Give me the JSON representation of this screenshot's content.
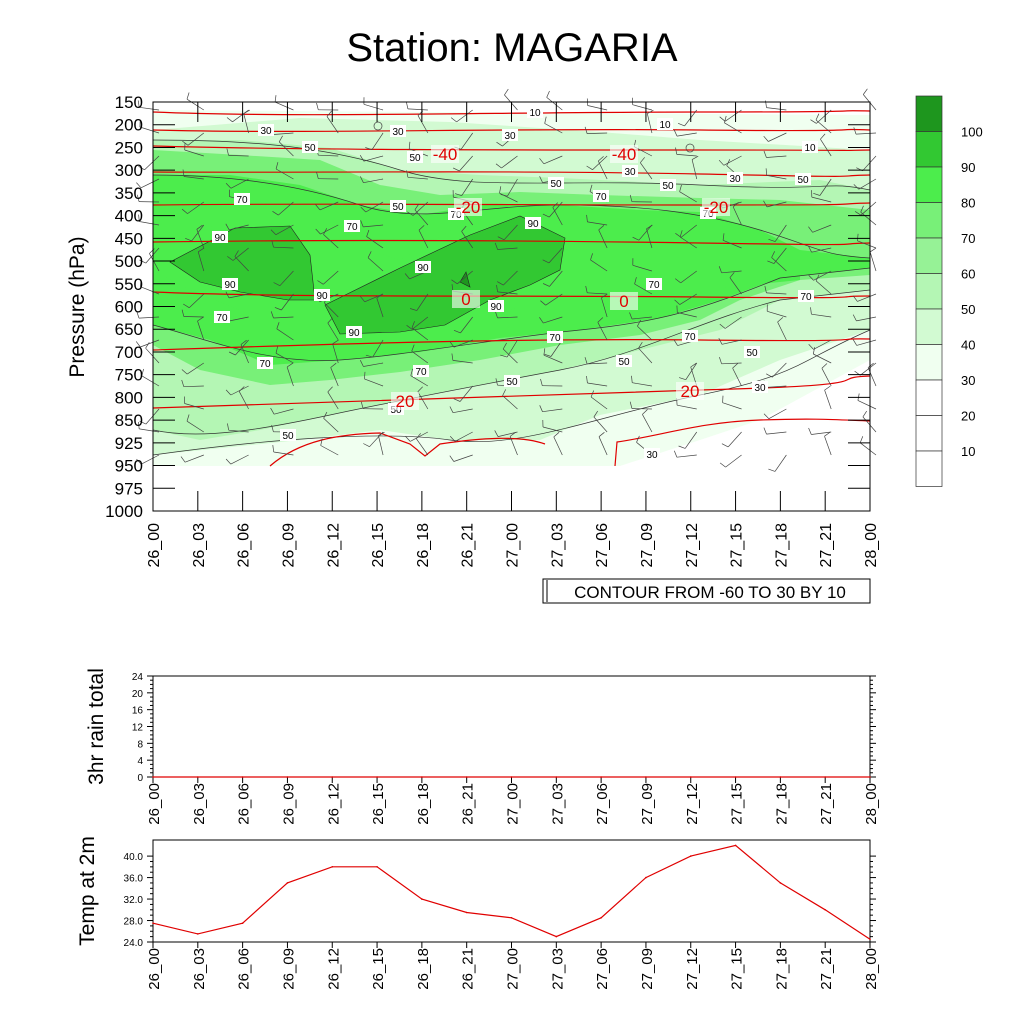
{
  "title": "Station: MAGARIA",
  "time_labels": [
    "26_00",
    "26_03",
    "26_06",
    "26_09",
    "26_12",
    "26_15",
    "26_18",
    "26_21",
    "27_00",
    "27_03",
    "27_06",
    "27_09",
    "27_12",
    "27_15",
    "27_18",
    "27_21",
    "28_00"
  ],
  "colors": {
    "rh_fill": [
      "#ffffff",
      "#ffffff",
      "#ffffff",
      "#f0fff0",
      "#d2fad2",
      "#b4f6b4",
      "#78f078",
      "#4ced4c",
      "#32c832",
      "#1e961e"
    ],
    "temp_line": "#e00000",
    "axis": "#000000"
  },
  "chart_data": [
    {
      "type": "contour",
      "title": "Station: MAGARIA",
      "ylabel": "Pressure (hPa)",
      "xlabel": "",
      "y_ticks": [
        "150",
        "200",
        "250",
        "300",
        "350",
        "400",
        "450",
        "500",
        "550",
        "600",
        "650",
        "700",
        "750",
        "800",
        "850",
        "925",
        "950",
        "975",
        "1000"
      ],
      "x_ticks": [
        "26_00",
        "26_03",
        "26_06",
        "26_09",
        "26_12",
        "26_15",
        "26_18",
        "26_21",
        "27_00",
        "27_03",
        "27_06",
        "27_09",
        "27_12",
        "27_15",
        "27_18",
        "27_21",
        "28_00"
      ],
      "info_label": "CONTOUR FROM -60 TO 30 BY 10",
      "colorbar_labels": [
        "100",
        "90",
        "80",
        "70",
        "60",
        "50",
        "40",
        "30",
        "20",
        "10"
      ],
      "rh_contour_labels": [
        "10",
        "30",
        "50",
        "70",
        "90"
      ],
      "temperature_lines": [
        {
          "label": "-40",
          "pressure_level": 250
        },
        {
          "label": "-20",
          "pressure_level": 375
        },
        {
          "label": "0",
          "pressure_level": 575
        },
        {
          "label": "20",
          "pressure_level": 775
        }
      ]
    },
    {
      "type": "line",
      "ylabel": "3hr rain total",
      "categories": [
        "26_00",
        "26_03",
        "26_06",
        "26_09",
        "26_12",
        "26_15",
        "26_18",
        "26_21",
        "27_00",
        "27_03",
        "27_06",
        "27_09",
        "27_12",
        "27_15",
        "27_18",
        "27_21",
        "28_00"
      ],
      "y_ticks": [
        "0",
        "4",
        "8",
        "12",
        "16",
        "20",
        "24"
      ],
      "ylim": [
        0,
        24
      ],
      "values": [
        0,
        0,
        0,
        0,
        0,
        0,
        0,
        0,
        0,
        0,
        0,
        0,
        0,
        0,
        0,
        0,
        0
      ]
    },
    {
      "type": "line",
      "ylabel": "Temp at 2m",
      "categories": [
        "26_00",
        "26_03",
        "26_06",
        "26_09",
        "26_12",
        "26_15",
        "26_18",
        "26_21",
        "27_00",
        "27_03",
        "27_06",
        "27_09",
        "27_12",
        "27_15",
        "27_18",
        "27_21",
        "28_00"
      ],
      "y_ticks": [
        "24.0",
        "28.0",
        "32.0",
        "36.0",
        "40.0"
      ],
      "ylim": [
        24,
        43
      ],
      "values": [
        27.5,
        25.5,
        27.5,
        35,
        38,
        38,
        32,
        29.5,
        28.5,
        25,
        28.5,
        36,
        40,
        42,
        35,
        30,
        24.5
      ]
    }
  ]
}
